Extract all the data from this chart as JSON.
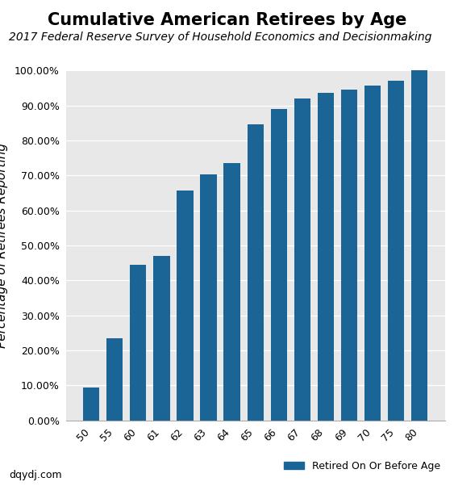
{
  "title": "Cumulative American Retirees by Age",
  "subtitle": "2017 Federal Reserve Survey of Household Economics and Decisionmaking",
  "ylabel": "Percentage of Retirees Reporting",
  "categories": [
    "50",
    "55",
    "60",
    "61",
    "62",
    "63",
    "64",
    "65",
    "66",
    "67",
    "68",
    "69",
    "70",
    "75",
    "80"
  ],
  "values": [
    0.094,
    0.234,
    0.445,
    0.47,
    0.656,
    0.703,
    0.735,
    0.847,
    0.891,
    0.921,
    0.935,
    0.946,
    0.956,
    0.971,
    1.0
  ],
  "bar_color": "#1a6496",
  "plot_bg_color": "#e8e8e8",
  "fig_bg_color": "#ffffff",
  "ylim": [
    0.0,
    1.0
  ],
  "ytick_values": [
    0.0,
    0.1,
    0.2,
    0.3,
    0.4,
    0.5,
    0.6,
    0.7,
    0.8,
    0.9,
    1.0
  ],
  "legend_label": "Retired On Or Before Age",
  "footer_text": "dqydj.com",
  "title_fontsize": 15,
  "subtitle_fontsize": 10,
  "ylabel_fontsize": 11,
  "tick_fontsize": 9,
  "legend_fontsize": 9,
  "footer_fontsize": 9,
  "bar_width": 0.7
}
